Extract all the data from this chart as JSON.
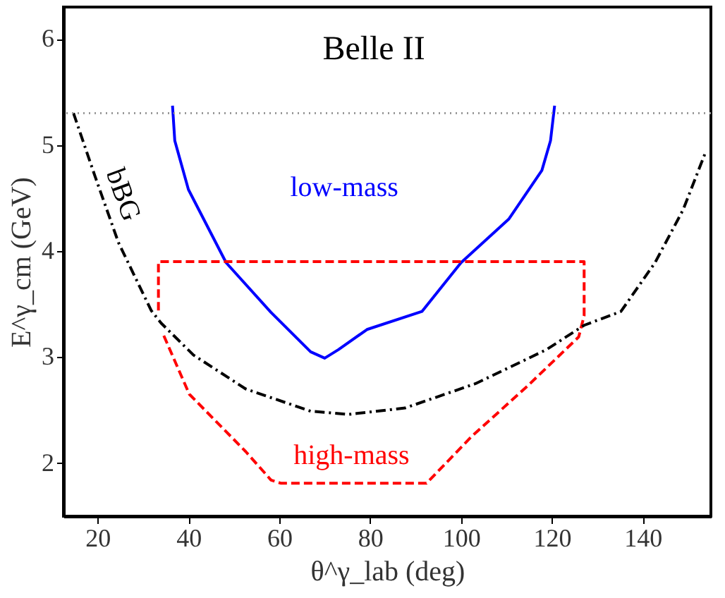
{
  "chart_data": {
    "type": "line",
    "xlabel": "θ^γ_lab (deg)",
    "ylabel": "E^γ_cm (GeV)",
    "xlim": [
      12.5,
      155
    ],
    "ylim": [
      1.5,
      6.3
    ],
    "xticks": [
      20,
      40,
      60,
      80,
      100,
      120,
      140
    ],
    "yticks": [
      2,
      3,
      4,
      5,
      6
    ],
    "grid": false,
    "marker": "none",
    "series": [
      {
        "name": "low-mass",
        "color": "#0000ff",
        "line_style": "solid",
        "x": [
          36.5,
          37,
          40,
          48.3,
          58.2,
          66.9,
          70,
          73,
          79.3,
          91.4,
          100,
          110.5,
          117.8,
          119.7,
          120.6
        ],
        "values": [
          5.37,
          5.04,
          4.58,
          3.89,
          3.42,
          3.05,
          2.99,
          3.07,
          3.26,
          3.43,
          3.89,
          4.3,
          4.76,
          5.04,
          5.37
        ]
      },
      {
        "name": "high-mass",
        "color": "#ff0000",
        "line_style": "dashed",
        "x": [
          33.4,
          33.4,
          127.1,
          127.1,
          125.9,
          114.7,
          102.3,
          92.4,
          60.4,
          58.2,
          52.6,
          40.2,
          34.3
        ],
        "values": [
          3.44,
          3.9,
          3.9,
          3.39,
          3.19,
          2.73,
          2.25,
          1.81,
          1.81,
          1.84,
          2.11,
          2.65,
          3.23
        ]
      },
      {
        "name": "bBG",
        "color": "#000000",
        "line_style": "dashdot",
        "x": [
          14.7,
          19.4,
          24.6,
          31.8,
          34,
          41.1,
          52.6,
          66.9,
          75.3,
          87.7,
          103.2,
          118.8,
          127.1,
          135.2,
          142.7,
          148.9,
          153.9
        ],
        "values": [
          5.3,
          4.71,
          4.08,
          3.44,
          3.32,
          3.02,
          2.7,
          2.49,
          2.46,
          2.52,
          2.75,
          3.07,
          3.3,
          3.43,
          3.89,
          4.39,
          4.94
        ]
      }
    ],
    "ref_lines": [
      {
        "axis": "y",
        "value": 5.3,
        "color": "#999999",
        "line_style": "dotted"
      }
    ],
    "annotations": [
      "Belle II"
    ]
  }
}
